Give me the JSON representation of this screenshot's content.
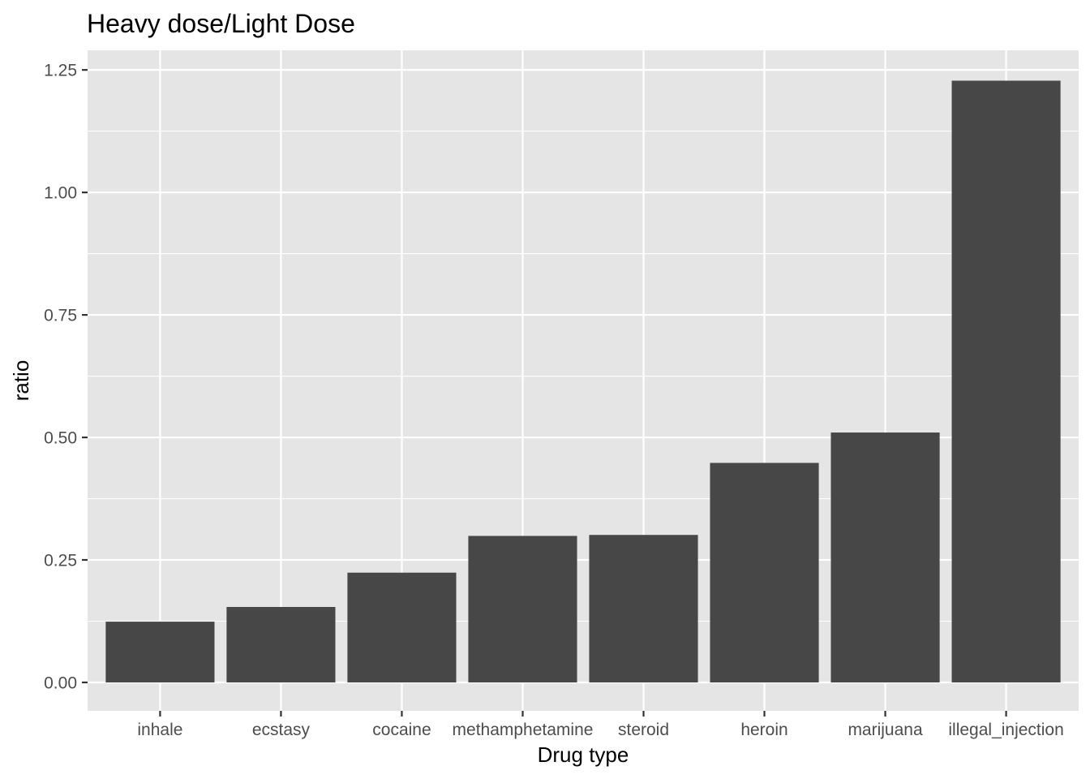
{
  "chart_data": {
    "type": "bar",
    "title": "Heavy dose/Light Dose",
    "xlabel": "Drug type",
    "ylabel": "ratio",
    "categories": [
      "inhale",
      "ecstasy",
      "cocaine",
      "methamphetamine",
      "steroid",
      "heroin",
      "marijuana",
      "illegal_injection"
    ],
    "values": [
      0.124,
      0.154,
      0.224,
      0.299,
      0.301,
      0.448,
      0.51,
      1.228
    ],
    "ylim": [
      -0.058,
      1.29
    ],
    "yticks": [
      0,
      0.25,
      0.5,
      0.75,
      1.0,
      1.25
    ],
    "ytick_labels": [
      "0.00",
      "0.25",
      "0.50",
      "0.75",
      "1.00",
      "1.25"
    ],
    "grid": true,
    "colors": {
      "panel": "#e5e5e5",
      "grid": "#ffffff",
      "bar": "#474747",
      "tick_text": "#4d4d4d",
      "tick_mark": "#333333"
    }
  }
}
